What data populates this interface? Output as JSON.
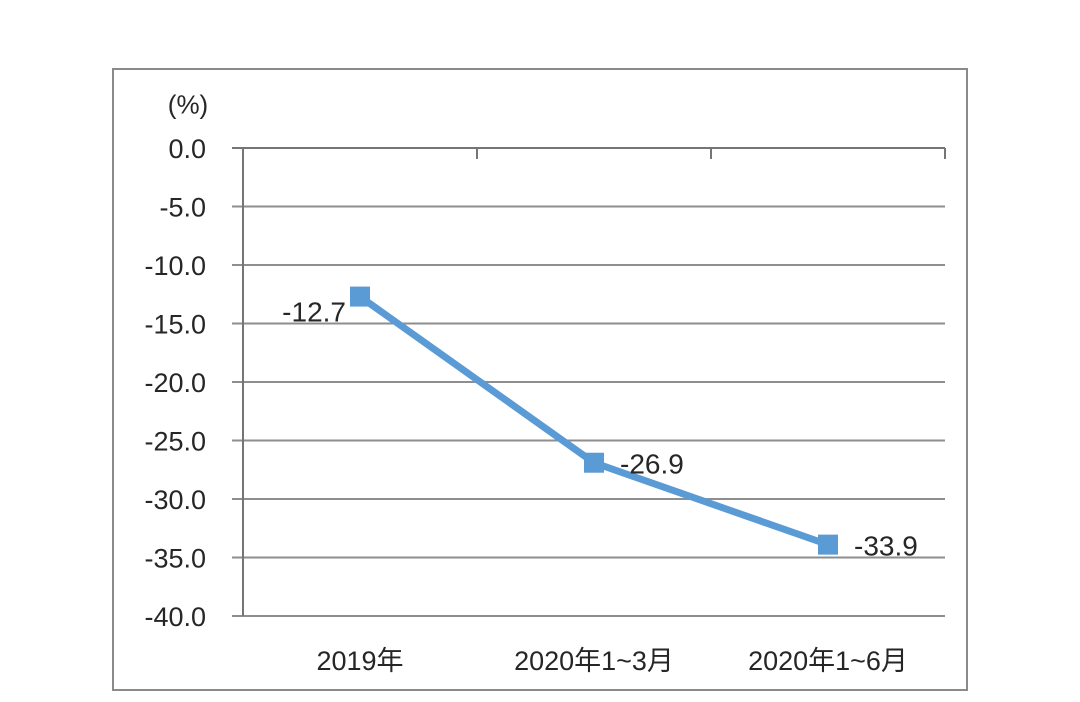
{
  "chart_data": {
    "type": "line",
    "title": "",
    "unit_label": "(%)",
    "categories": [
      "2019年",
      "2020年1~3月",
      "2020年1~6月"
    ],
    "values": [
      -12.7,
      -26.9,
      -33.9
    ],
    "data_labels": [
      "-12.7",
      "-26.9",
      "-33.9"
    ],
    "data_label_sides": [
      "left",
      "right",
      "right"
    ],
    "xlabel": "",
    "ylabel": "(%)",
    "y_axis": {
      "min": -40,
      "max": 0,
      "step": 5,
      "tick_labels": [
        "0.0",
        "-5.0",
        "-10.0",
        "-15.0",
        "-20.0",
        "-25.0",
        "-30.0",
        "-35.0",
        "-40.0"
      ]
    },
    "grid": true,
    "legend": "none",
    "marker": "square",
    "colors": {
      "line": "#5b9bd5",
      "marker": "#5b9bd5",
      "grid": "#8e8e8e",
      "axis": "#757575",
      "border": "#8a8a8a",
      "text": "#262626",
      "background": "#ffffff"
    }
  }
}
